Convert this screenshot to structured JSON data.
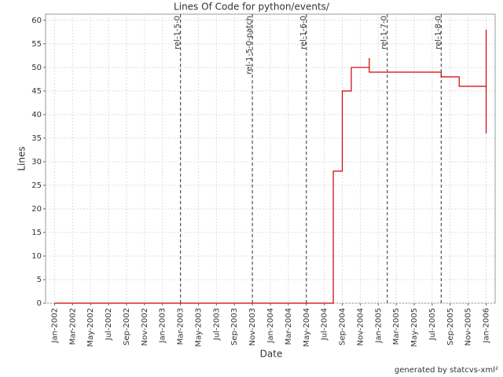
{
  "chart_data": {
    "type": "line",
    "title": "Lines Of Code for python/events/",
    "x_label": "Date",
    "y_label": "Lines",
    "footer": "generated by statcvs-xml²",
    "xlim": [
      "2001-12",
      "2006-02"
    ],
    "ylim": [
      0,
      61.3
    ],
    "yticks": [
      0,
      5,
      10,
      15,
      20,
      25,
      30,
      35,
      40,
      45,
      50,
      55,
      60
    ],
    "xticks": [
      {
        "value": "2002-01",
        "label": "Jan-2002"
      },
      {
        "value": "2002-03",
        "label": "Mar-2002"
      },
      {
        "value": "2002-05",
        "label": "May-2002"
      },
      {
        "value": "2002-07",
        "label": "Jul-2002"
      },
      {
        "value": "2002-09",
        "label": "Sep-2002"
      },
      {
        "value": "2002-11",
        "label": "Nov-2002"
      },
      {
        "value": "2003-01",
        "label": "Jan-2003"
      },
      {
        "value": "2003-03",
        "label": "Mar-2003"
      },
      {
        "value": "2003-05",
        "label": "May-2003"
      },
      {
        "value": "2003-07",
        "label": "Jul-2003"
      },
      {
        "value": "2003-09",
        "label": "Sep-2003"
      },
      {
        "value": "2003-11",
        "label": "Nov-2003"
      },
      {
        "value": "2004-01",
        "label": "Jan-2004"
      },
      {
        "value": "2004-03",
        "label": "Mar-2004"
      },
      {
        "value": "2004-05",
        "label": "May-2004"
      },
      {
        "value": "2004-07",
        "label": "Jul-2004"
      },
      {
        "value": "2004-09",
        "label": "Sep-2004"
      },
      {
        "value": "2004-11",
        "label": "Nov-2004"
      },
      {
        "value": "2005-01",
        "label": "Jan-2005"
      },
      {
        "value": "2005-03",
        "label": "Mar-2005"
      },
      {
        "value": "2005-05",
        "label": "May-2005"
      },
      {
        "value": "2005-07",
        "label": "Jul-2005"
      },
      {
        "value": "2005-09",
        "label": "Sep-2005"
      },
      {
        "value": "2005-11",
        "label": "Nov-2005"
      },
      {
        "value": "2006-01",
        "label": "Jan-2006"
      }
    ],
    "grid": true,
    "markers": [
      {
        "label": "rel-1-5-0",
        "x": "2003-03"
      },
      {
        "label": "rel-1-5-0-patch",
        "x": "2003-11"
      },
      {
        "label": "rel-1-6-0",
        "x": "2004-05"
      },
      {
        "label": "rel-1-7-0",
        "x": "2005-02"
      },
      {
        "label": "rel-1-8-0",
        "x": "2005-08"
      }
    ],
    "series": [
      {
        "name": "Lines",
        "color": "#cc0000",
        "x": [
          "2002-01",
          "2004-08",
          "2004-08",
          "2004-09",
          "2004-09",
          "2004-10",
          "2004-10",
          "2004-12",
          "2004-12",
          "2004-12",
          "2005-08",
          "2005-08",
          "2005-10",
          "2005-10",
          "2006-01",
          "2006-01",
          "2006-01",
          "2006-01"
        ],
        "values": [
          0,
          0,
          28,
          28,
          45,
          45,
          50,
          50,
          52,
          49,
          49,
          48,
          48,
          46,
          46,
          58,
          36,
          38
        ]
      }
    ]
  }
}
